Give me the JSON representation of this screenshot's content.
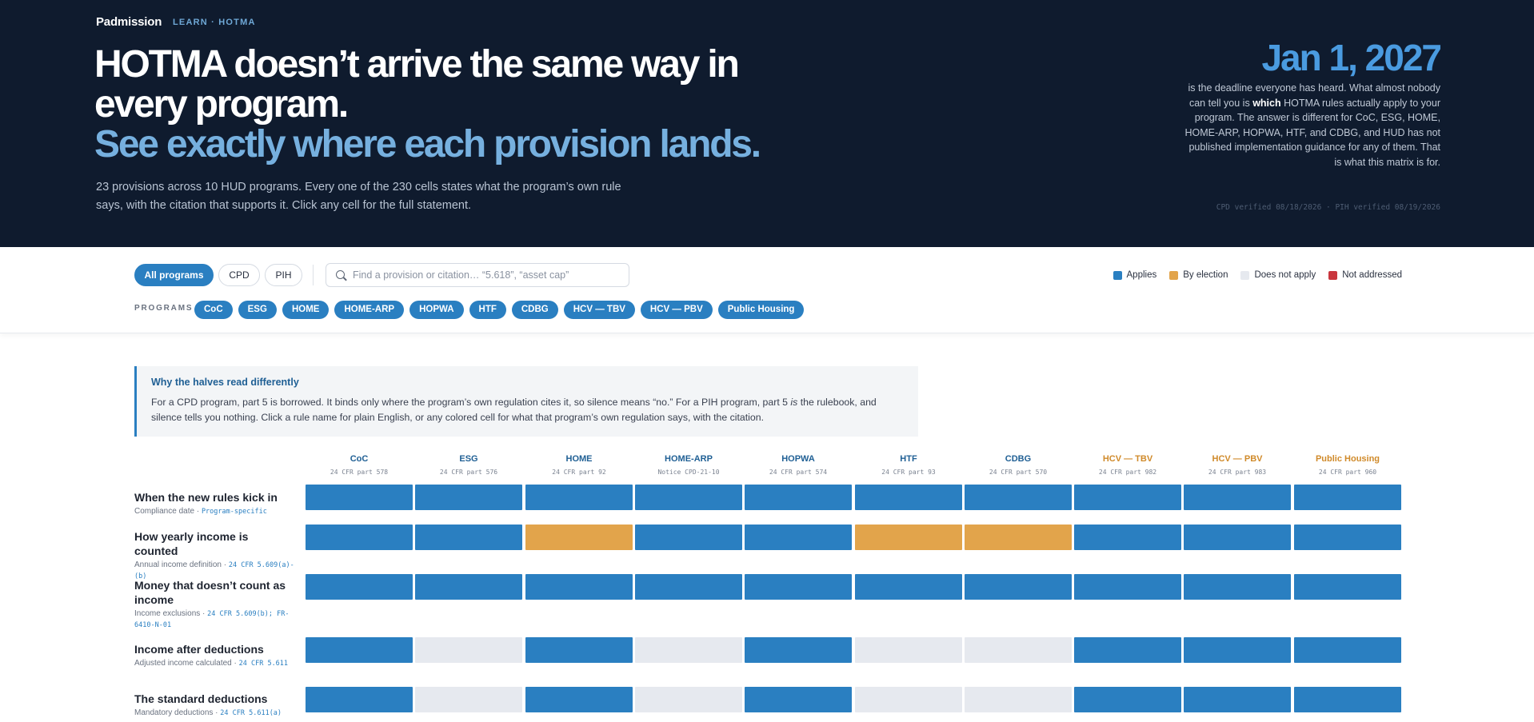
{
  "header": {
    "brand": "Padmission",
    "breadcrumb": "LEARN · HOTMA",
    "headline_1": "HOTMA doesn’t arrive the same way in",
    "headline_2": "every program.",
    "headline_accent": "See exactly where each provision lands.",
    "lede": "23 provisions across 10 HUD programs. Every one of the 230 cells states what the program’s own rule says, with the citation that supports it. Click any cell for the full statement.",
    "deadline": "Jan 1, 2027",
    "side_note_pre": "is the deadline everyone has heard. What almost nobody can tell you is ",
    "side_note_bold": "which",
    "side_note_post": " HOTMA rules actually apply to your program. The answer is different for CoC, ESG, HOME, HOME-ARP, HOPWA, HTF, and CDBG, and HUD has not published implementation guidance for any of them. That is what this matrix is for.",
    "verified": "CPD verified 08/18/2026 · PIH verified 08/19/2026"
  },
  "toolbar": {
    "filters": [
      "All programs",
      "CPD",
      "PIH"
    ],
    "search_placeholder": "Find a provision or citation… “5.618”, “asset cap”",
    "programs_label": "PROGRAMS",
    "program_chips": [
      "CoC",
      "ESG",
      "HOME",
      "HOME-ARP",
      "HOPWA",
      "HTF",
      "CDBG",
      "HCV — TBV",
      "HCV — PBV",
      "Public Housing"
    ]
  },
  "legend": [
    {
      "label": "Applies",
      "color": "#2a7fc1"
    },
    {
      "label": "By election",
      "color": "#e2a44b"
    },
    {
      "label": "Does not apply",
      "color": "#e6e9ef"
    },
    {
      "label": "Not addressed",
      "color": "#c9363e"
    }
  ],
  "callout": {
    "title": "Why the halves read differently",
    "body_pre": "For a CPD program, part 5 is borrowed. It binds only where the program’s own regulation cites it, so silence means “no.” For a PIH program, part 5 ",
    "body_em": "is",
    "body_post": " the rulebook, and silence tells you nothing. Click a rule name for plain English, or any colored cell for what that program’s own regulation says, with the citation."
  },
  "matrix": {
    "columns": [
      {
        "name": "CoC",
        "cite": "24 CFR part 578",
        "family": "cpd"
      },
      {
        "name": "ESG",
        "cite": "24 CFR part 576",
        "family": "cpd"
      },
      {
        "name": "HOME",
        "cite": "24 CFR part 92",
        "family": "cpd"
      },
      {
        "name": "HOME-ARP",
        "cite": "Notice CPD-21-10",
        "family": "cpd"
      },
      {
        "name": "HOPWA",
        "cite": "24 CFR part 574",
        "family": "cpd"
      },
      {
        "name": "HTF",
        "cite": "24 CFR part 93",
        "family": "cpd"
      },
      {
        "name": "CDBG",
        "cite": "24 CFR part 570",
        "family": "cpd"
      },
      {
        "name": "HCV — TBV",
        "cite": "24 CFR part 982",
        "family": "pih"
      },
      {
        "name": "HCV — PBV",
        "cite": "24 CFR part 983",
        "family": "pih"
      },
      {
        "name": "Public Housing",
        "cite": "24 CFR part 960",
        "family": "pih"
      }
    ],
    "rows": [
      {
        "title": "When the new rules kick in",
        "subtitle": "Compliance date · ",
        "citation": "Program-specific",
        "cells": [
          "applies",
          "applies",
          "applies",
          "applies",
          "applies",
          "applies",
          "applies",
          "applies",
          "applies",
          "applies"
        ]
      },
      {
        "title": "How yearly income is counted",
        "subtitle": "Annual income definition · ",
        "citation": "24 CFR 5.609(a)-(b)",
        "cells": [
          "applies",
          "applies",
          "election",
          "applies",
          "applies",
          "election",
          "election",
          "applies",
          "applies",
          "applies"
        ]
      },
      {
        "title": "Money that doesn’t count as income",
        "subtitle": "Income exclusions · ",
        "citation": "24 CFR 5.609(b); FR-6410-N-01",
        "cells": [
          "applies",
          "applies",
          "applies",
          "applies",
          "applies",
          "applies",
          "applies",
          "applies",
          "applies",
          "applies"
        ]
      },
      {
        "title": "Income after deductions",
        "subtitle": "Adjusted income calculated · ",
        "citation": "24 CFR 5.611",
        "cells": [
          "applies",
          "none",
          "applies",
          "none",
          "applies",
          "none",
          "none",
          "applies",
          "applies",
          "applies"
        ]
      },
      {
        "title": "The standard deductions",
        "subtitle": "Mandatory deductions · ",
        "citation": "24 CFR 5.611(a)",
        "cells": [
          "applies",
          "none",
          "applies",
          "none",
          "applies",
          "none",
          "none",
          "applies",
          "applies",
          "applies"
        ]
      }
    ]
  },
  "status_colors": {
    "applies": "#2a7fc1",
    "election": "#e2a44b",
    "none": "#e6e9ef",
    "missing": "#c9363e"
  }
}
